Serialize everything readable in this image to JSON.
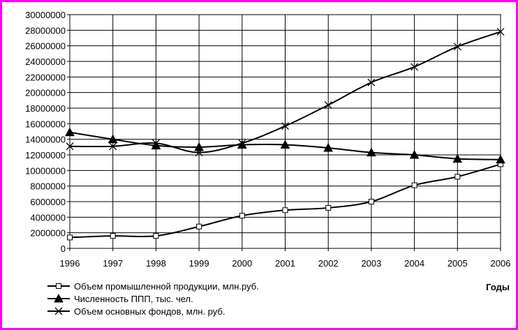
{
  "chart_data": {
    "type": "line",
    "x": [
      "1996",
      "1997",
      "1998",
      "1999",
      "2000",
      "2001",
      "2002",
      "2003",
      "2004",
      "2005",
      "2006"
    ],
    "xlabel": "Годы",
    "ylabel": "",
    "ylim": [
      0,
      30000000
    ],
    "yticks": [
      "0",
      "2000000",
      "4000000",
      "6000000",
      "8000000",
      "10000000",
      "12000000",
      "14000000",
      "16000000",
      "18000000",
      "20000000",
      "22000000",
      "24000000",
      "26000000",
      "28000000",
      "30000000"
    ],
    "grid": true,
    "legend_position": "bottom-left",
    "series": [
      {
        "name": "Объем промышленной продукции, млн.руб.",
        "marker": "square-open",
        "values": [
          1400000,
          1600000,
          1600000,
          2800000,
          4200000,
          4900000,
          5200000,
          6000000,
          8100000,
          9200000,
          10800000
        ]
      },
      {
        "name": "Численность ППП, тыс. чел.",
        "marker": "triangle-filled",
        "values": [
          14900000,
          14000000,
          13200000,
          13000000,
          13300000,
          13300000,
          12900000,
          12300000,
          12000000,
          11500000,
          11400000
        ]
      },
      {
        "name": "Объем основных фондов, млн. руб.",
        "marker": "x",
        "values": [
          13100000,
          13100000,
          13500000,
          12300000,
          13500000,
          15700000,
          18400000,
          21300000,
          23300000,
          25900000,
          27800000
        ]
      }
    ],
    "colors": {
      "line": "#000000",
      "grid": "#000000",
      "border": "#ff00ff",
      "background": "#ffffff"
    }
  }
}
